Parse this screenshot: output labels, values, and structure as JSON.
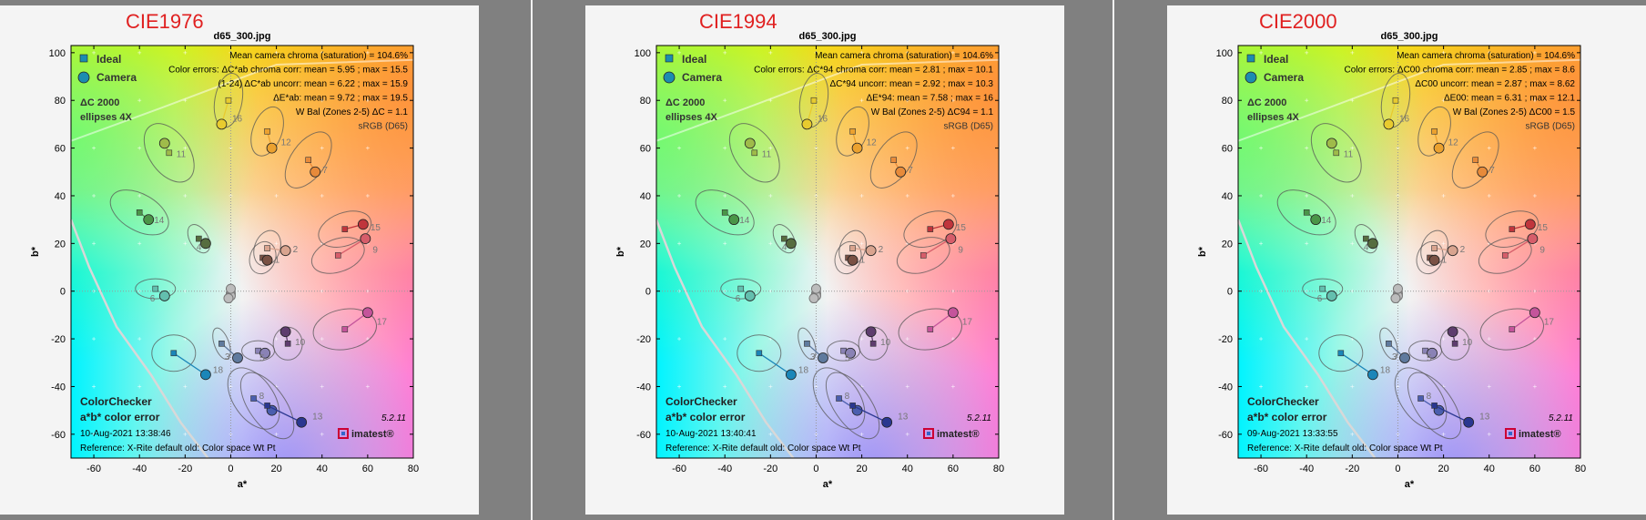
{
  "chart_data": [
    {
      "type": "scatter",
      "method_label": "CIE1976",
      "title": "d65_300.jpg",
      "xlabel": "a*",
      "ylabel": "b*",
      "xlim": [
        -70,
        80
      ],
      "ylim": [
        -70,
        103
      ],
      "xticks": [
        -60,
        -40,
        -20,
        0,
        20,
        40,
        60,
        80
      ],
      "yticks": [
        -60,
        -40,
        -20,
        0,
        20,
        40,
        60,
        80,
        100
      ],
      "grid": false,
      "legend": {
        "position": "top-left",
        "items": [
          "Ideal",
          "Camera"
        ]
      },
      "info_lines": [
        "Mean camera chroma (saturation) = 104.6%",
        "Color errors:  ΔC*ab  chroma corr:  mean = 5.95 ;  max = 15.5",
        "(1-24)     ΔC*ab  uncorr:  mean = 6.22 ;  max = 15.9",
        "ΔE*ab:  mean = 9.72 ;  max = 19.5",
        "W Bal (Zones 2-5)  ΔC = 1.1",
        "sRGB (D65)"
      ],
      "ellipse_note": [
        "ΔC 2000",
        "ellipses 4X"
      ],
      "footer": {
        "title1": "ColorChecker",
        "title2": "a*b* color error",
        "timestamp": "10-Aug-2021 13:38:46",
        "reference": "Reference: X-Rite default old: Color space Wt Pt",
        "version": "5.2.11",
        "brand": "imatest"
      },
      "patches": [
        {
          "id": "1",
          "ideal": [
            14,
            14
          ],
          "camera": [
            16,
            13
          ],
          "color": "#7a5144"
        },
        {
          "id": "2",
          "ideal": [
            16,
            18
          ],
          "camera": [
            24,
            17
          ],
          "color": "#d9a48f"
        },
        {
          "id": "3",
          "ideal": [
            -4,
            -22
          ],
          "camera": [
            3,
            -28
          ],
          "color": "#5f7a9e"
        },
        {
          "id": "4",
          "ideal": [
            -14,
            22
          ],
          "camera": [
            -11,
            20
          ],
          "color": "#566d3f"
        },
        {
          "id": "5",
          "ideal": [
            12,
            -25
          ],
          "camera": [
            15,
            -26
          ],
          "color": "#8a82b5"
        },
        {
          "id": "6",
          "ideal": [
            -33,
            1
          ],
          "camera": [
            -29,
            -2
          ],
          "color": "#63bfae"
        },
        {
          "id": "7",
          "ideal": [
            34,
            55
          ],
          "camera": [
            37,
            50
          ],
          "color": "#e78a3a"
        },
        {
          "id": "8",
          "ideal": [
            10,
            -45
          ],
          "camera": [
            18,
            -50
          ],
          "color": "#4a5eae"
        },
        {
          "id": "9",
          "ideal": [
            47,
            15
          ],
          "camera": [
            59,
            22
          ],
          "color": "#d65d6a"
        },
        {
          "id": "10",
          "ideal": [
            25,
            -22
          ],
          "camera": [
            24,
            -17
          ],
          "color": "#5e3d6e"
        },
        {
          "id": "11",
          "ideal": [
            -27,
            58
          ],
          "camera": [
            -29,
            62
          ],
          "color": "#9fbb4a"
        },
        {
          "id": "12",
          "ideal": [
            16,
            67
          ],
          "camera": [
            18,
            60
          ],
          "color": "#eba12f"
        },
        {
          "id": "13",
          "ideal": [
            16,
            -48
          ],
          "camera": [
            31,
            -55
          ],
          "color": "#2a3790"
        },
        {
          "id": "14",
          "ideal": [
            -40,
            33
          ],
          "camera": [
            -36,
            30
          ],
          "color": "#4a9548"
        },
        {
          "id": "15",
          "ideal": [
            50,
            26
          ],
          "camera": [
            58,
            28
          ],
          "color": "#c0353c"
        },
        {
          "id": "16",
          "ideal": [
            -1,
            80
          ],
          "camera": [
            -4,
            70
          ],
          "color": "#e8cb2f"
        },
        {
          "id": "17",
          "ideal": [
            50,
            -16
          ],
          "camera": [
            60,
            -9
          ],
          "color": "#c4549b"
        },
        {
          "id": "18",
          "ideal": [
            -25,
            -26
          ],
          "camera": [
            -11,
            -35
          ],
          "color": "#1b86b8"
        }
      ]
    },
    {
      "type": "scatter",
      "method_label": "CIE1994",
      "title": "d65_300.jpg",
      "xlabel": "a*",
      "ylabel": "b*",
      "xlim": [
        -70,
        80
      ],
      "ylim": [
        -70,
        103
      ],
      "xticks": [
        -60,
        -40,
        -20,
        0,
        20,
        40,
        60,
        80
      ],
      "yticks": [
        -60,
        -40,
        -20,
        0,
        20,
        40,
        60,
        80,
        100
      ],
      "grid": false,
      "legend": {
        "position": "top-left",
        "items": [
          "Ideal",
          "Camera"
        ]
      },
      "info_lines": [
        "Mean camera chroma (saturation) = 104.6%",
        "Color errors:  ΔC*94  chroma corr:  mean = 2.81 ;  max = 10.1",
        "ΔC*94  uncorr:  mean = 2.92 ;  max = 10.3",
        "ΔE*94:  mean = 7.58 ;  max = 16",
        "W Bal (Zones 2-5)  ΔC94 = 1.1",
        "sRGB (D65)"
      ],
      "ellipse_note": [
        "ΔC 2000",
        "ellipses 4X"
      ],
      "footer": {
        "title1": "ColorChecker",
        "title2": "a*b* color error",
        "timestamp": "10-Aug-2021 13:40:41",
        "reference": "Reference: X-Rite default old: Color space Wt Pt",
        "version": "5.2.11",
        "brand": "imatest"
      },
      "patches": [
        {
          "id": "1",
          "ideal": [
            14,
            14
          ],
          "camera": [
            16,
            13
          ],
          "color": "#7a5144"
        },
        {
          "id": "2",
          "ideal": [
            16,
            18
          ],
          "camera": [
            24,
            17
          ],
          "color": "#d9a48f"
        },
        {
          "id": "3",
          "ideal": [
            -4,
            -22
          ],
          "camera": [
            3,
            -28
          ],
          "color": "#5f7a9e"
        },
        {
          "id": "4",
          "ideal": [
            -14,
            22
          ],
          "camera": [
            -11,
            20
          ],
          "color": "#566d3f"
        },
        {
          "id": "5",
          "ideal": [
            12,
            -25
          ],
          "camera": [
            15,
            -26
          ],
          "color": "#8a82b5"
        },
        {
          "id": "6",
          "ideal": [
            -33,
            1
          ],
          "camera": [
            -29,
            -2
          ],
          "color": "#63bfae"
        },
        {
          "id": "7",
          "ideal": [
            34,
            55
          ],
          "camera": [
            37,
            50
          ],
          "color": "#e78a3a"
        },
        {
          "id": "8",
          "ideal": [
            10,
            -45
          ],
          "camera": [
            18,
            -50
          ],
          "color": "#4a5eae"
        },
        {
          "id": "9",
          "ideal": [
            47,
            15
          ],
          "camera": [
            59,
            22
          ],
          "color": "#d65d6a"
        },
        {
          "id": "10",
          "ideal": [
            25,
            -22
          ],
          "camera": [
            24,
            -17
          ],
          "color": "#5e3d6e"
        },
        {
          "id": "11",
          "ideal": [
            -27,
            58
          ],
          "camera": [
            -29,
            62
          ],
          "color": "#9fbb4a"
        },
        {
          "id": "12",
          "ideal": [
            16,
            67
          ],
          "camera": [
            18,
            60
          ],
          "color": "#eba12f"
        },
        {
          "id": "13",
          "ideal": [
            16,
            -48
          ],
          "camera": [
            31,
            -55
          ],
          "color": "#2a3790"
        },
        {
          "id": "14",
          "ideal": [
            -40,
            33
          ],
          "camera": [
            -36,
            30
          ],
          "color": "#4a9548"
        },
        {
          "id": "15",
          "ideal": [
            50,
            26
          ],
          "camera": [
            58,
            28
          ],
          "color": "#c0353c"
        },
        {
          "id": "16",
          "ideal": [
            -1,
            80
          ],
          "camera": [
            -4,
            70
          ],
          "color": "#e8cb2f"
        },
        {
          "id": "17",
          "ideal": [
            50,
            -16
          ],
          "camera": [
            60,
            -9
          ],
          "color": "#c4549b"
        },
        {
          "id": "18",
          "ideal": [
            -25,
            -26
          ],
          "camera": [
            -11,
            -35
          ],
          "color": "#1b86b8"
        }
      ]
    },
    {
      "type": "scatter",
      "method_label": "CIE2000",
      "title": "d65_300.jpg",
      "xlabel": "a*",
      "ylabel": "b*",
      "xlim": [
        -70,
        80
      ],
      "ylim": [
        -70,
        103
      ],
      "xticks": [
        -60,
        -40,
        -20,
        0,
        20,
        40,
        60,
        80
      ],
      "yticks": [
        -60,
        -40,
        -20,
        0,
        20,
        40,
        60,
        80,
        100
      ],
      "grid": false,
      "legend": {
        "position": "top-left",
        "items": [
          "Ideal",
          "Camera"
        ]
      },
      "info_lines": [
        "Mean camera chroma (saturation) = 104.6%",
        "Color errors:  ΔC00  chroma corr:  mean = 2.85 ;  max = 8.6",
        "ΔC00  uncorr:  mean = 2.87 ;  max = 8.62",
        "ΔE00:  mean = 6.31 ;  max = 12.1",
        "W Bal (Zones 2-5)  ΔC00 = 1.5",
        "sRGB (D65)"
      ],
      "ellipse_note": [
        "ΔC 2000",
        "ellipses 4X"
      ],
      "footer": {
        "title1": "ColorChecker",
        "title2": "a*b* color error",
        "timestamp": "09-Aug-2021 13:33:55",
        "reference": "Reference: X-Rite default old: Color space Wt Pt",
        "version": "5.2.11",
        "brand": "imatest"
      },
      "patches": [
        {
          "id": "1",
          "ideal": [
            14,
            14
          ],
          "camera": [
            16,
            13
          ],
          "color": "#7a5144"
        },
        {
          "id": "2",
          "ideal": [
            16,
            18
          ],
          "camera": [
            24,
            17
          ],
          "color": "#d9a48f"
        },
        {
          "id": "3",
          "ideal": [
            -4,
            -22
          ],
          "camera": [
            3,
            -28
          ],
          "color": "#5f7a9e"
        },
        {
          "id": "4",
          "ideal": [
            -14,
            22
          ],
          "camera": [
            -11,
            20
          ],
          "color": "#566d3f"
        },
        {
          "id": "5",
          "ideal": [
            12,
            -25
          ],
          "camera": [
            15,
            -26
          ],
          "color": "#8a82b5"
        },
        {
          "id": "6",
          "ideal": [
            -33,
            1
          ],
          "camera": [
            -29,
            -2
          ],
          "color": "#63bfae"
        },
        {
          "id": "7",
          "ideal": [
            34,
            55
          ],
          "camera": [
            37,
            50
          ],
          "color": "#e78a3a"
        },
        {
          "id": "8",
          "ideal": [
            10,
            -45
          ],
          "camera": [
            18,
            -50
          ],
          "color": "#4a5eae"
        },
        {
          "id": "9",
          "ideal": [
            47,
            15
          ],
          "camera": [
            59,
            22
          ],
          "color": "#d65d6a"
        },
        {
          "id": "10",
          "ideal": [
            25,
            -22
          ],
          "camera": [
            24,
            -17
          ],
          "color": "#5e3d6e"
        },
        {
          "id": "11",
          "ideal": [
            -27,
            58
          ],
          "camera": [
            -29,
            62
          ],
          "color": "#9fbb4a"
        },
        {
          "id": "12",
          "ideal": [
            16,
            67
          ],
          "camera": [
            18,
            60
          ],
          "color": "#eba12f"
        },
        {
          "id": "13",
          "ideal": [
            16,
            -48
          ],
          "camera": [
            31,
            -55
          ],
          "color": "#2a3790"
        },
        {
          "id": "14",
          "ideal": [
            -40,
            33
          ],
          "camera": [
            -36,
            30
          ],
          "color": "#4a9548"
        },
        {
          "id": "15",
          "ideal": [
            50,
            26
          ],
          "camera": [
            58,
            28
          ],
          "color": "#c0353c"
        },
        {
          "id": "16",
          "ideal": [
            -1,
            80
          ],
          "camera": [
            -4,
            70
          ],
          "color": "#e8cb2f"
        },
        {
          "id": "17",
          "ideal": [
            50,
            -16
          ],
          "camera": [
            60,
            -9
          ],
          "color": "#c4549b"
        },
        {
          "id": "18",
          "ideal": [
            -25,
            -26
          ],
          "camera": [
            -11,
            -35
          ],
          "color": "#1b86b8"
        }
      ]
    }
  ]
}
